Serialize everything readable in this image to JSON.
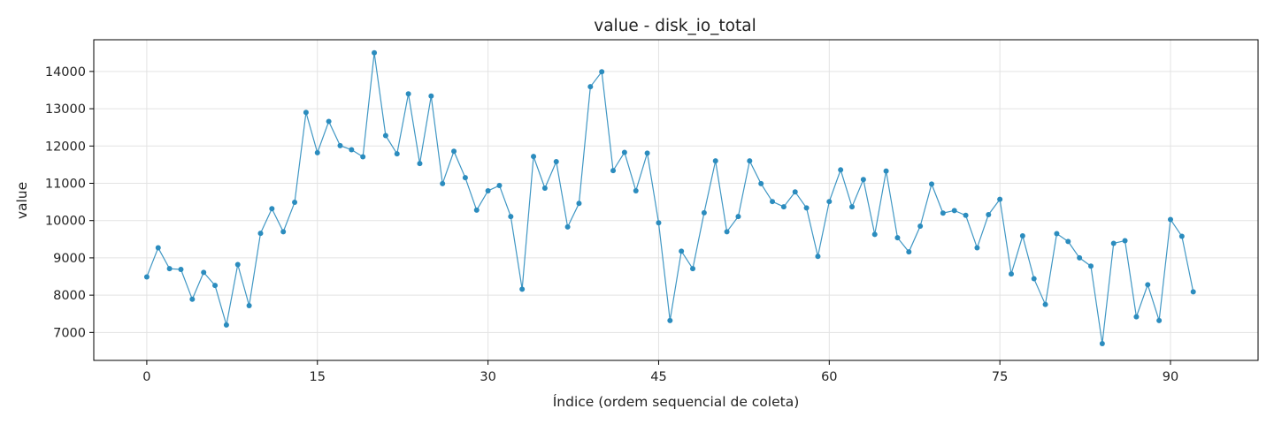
{
  "chart_data": {
    "type": "line",
    "title": "value - disk_io_total",
    "xlabel": "Índice (ordem sequencial de coleta)",
    "ylabel": "value",
    "xlim": [
      -4.66,
      97.7
    ],
    "ylim": [
      6250,
      14850
    ],
    "xticks": [
      0,
      15,
      30,
      45,
      60,
      75,
      90
    ],
    "yticks": [
      7000,
      8000,
      9000,
      10000,
      11000,
      12000,
      13000,
      14000
    ],
    "grid": true,
    "color": "#2b8cbe",
    "series": [
      {
        "x": [
          0,
          1,
          2,
          3,
          4,
          5,
          6,
          7,
          8,
          9,
          10,
          11,
          12,
          13,
          14,
          15,
          16,
          17,
          18,
          19,
          20,
          21,
          22,
          23,
          24,
          25,
          26,
          27,
          28,
          29,
          30,
          31,
          32,
          33,
          34,
          35,
          36,
          37,
          38,
          39,
          40,
          41,
          42,
          43,
          44,
          45,
          46,
          47,
          48,
          49,
          50,
          51,
          52,
          53,
          54,
          55,
          56,
          57,
          58,
          59,
          60,
          61,
          62,
          63,
          64,
          65,
          66,
          67,
          68,
          69,
          70,
          71,
          72,
          73,
          74,
          75,
          76,
          77,
          78,
          79,
          80,
          81,
          82,
          83,
          84,
          85,
          86,
          87,
          88,
          89,
          90,
          91,
          92
        ],
        "values": [
          8490,
          9270,
          8710,
          8690,
          7890,
          8610,
          8260,
          7200,
          8820,
          7720,
          9660,
          10320,
          9700,
          10490,
          12900,
          11820,
          12660,
          12010,
          11900,
          11710,
          14500,
          12280,
          11790,
          13400,
          11530,
          13340,
          10990,
          11860,
          11150,
          10280,
          10800,
          10940,
          10110,
          8160,
          11720,
          10870,
          11580,
          9830,
          10460,
          13590,
          13990,
          11340,
          11830,
          10800,
          11810,
          9940,
          7320,
          9180,
          8710,
          10210,
          11600,
          9700,
          10110,
          11600,
          10990,
          10510,
          10370,
          10770,
          10340,
          9040,
          10510,
          11360,
          10370,
          11100,
          9630,
          11330,
          9540,
          9160,
          9850,
          10980,
          10200,
          10270,
          10140,
          9270,
          10160,
          10570,
          8570,
          9590,
          8440,
          7750,
          9650,
          9440,
          9000,
          8780,
          6700,
          9390,
          9460,
          7420,
          8280,
          7320,
          10030,
          9580,
          8090
        ]
      }
    ]
  }
}
